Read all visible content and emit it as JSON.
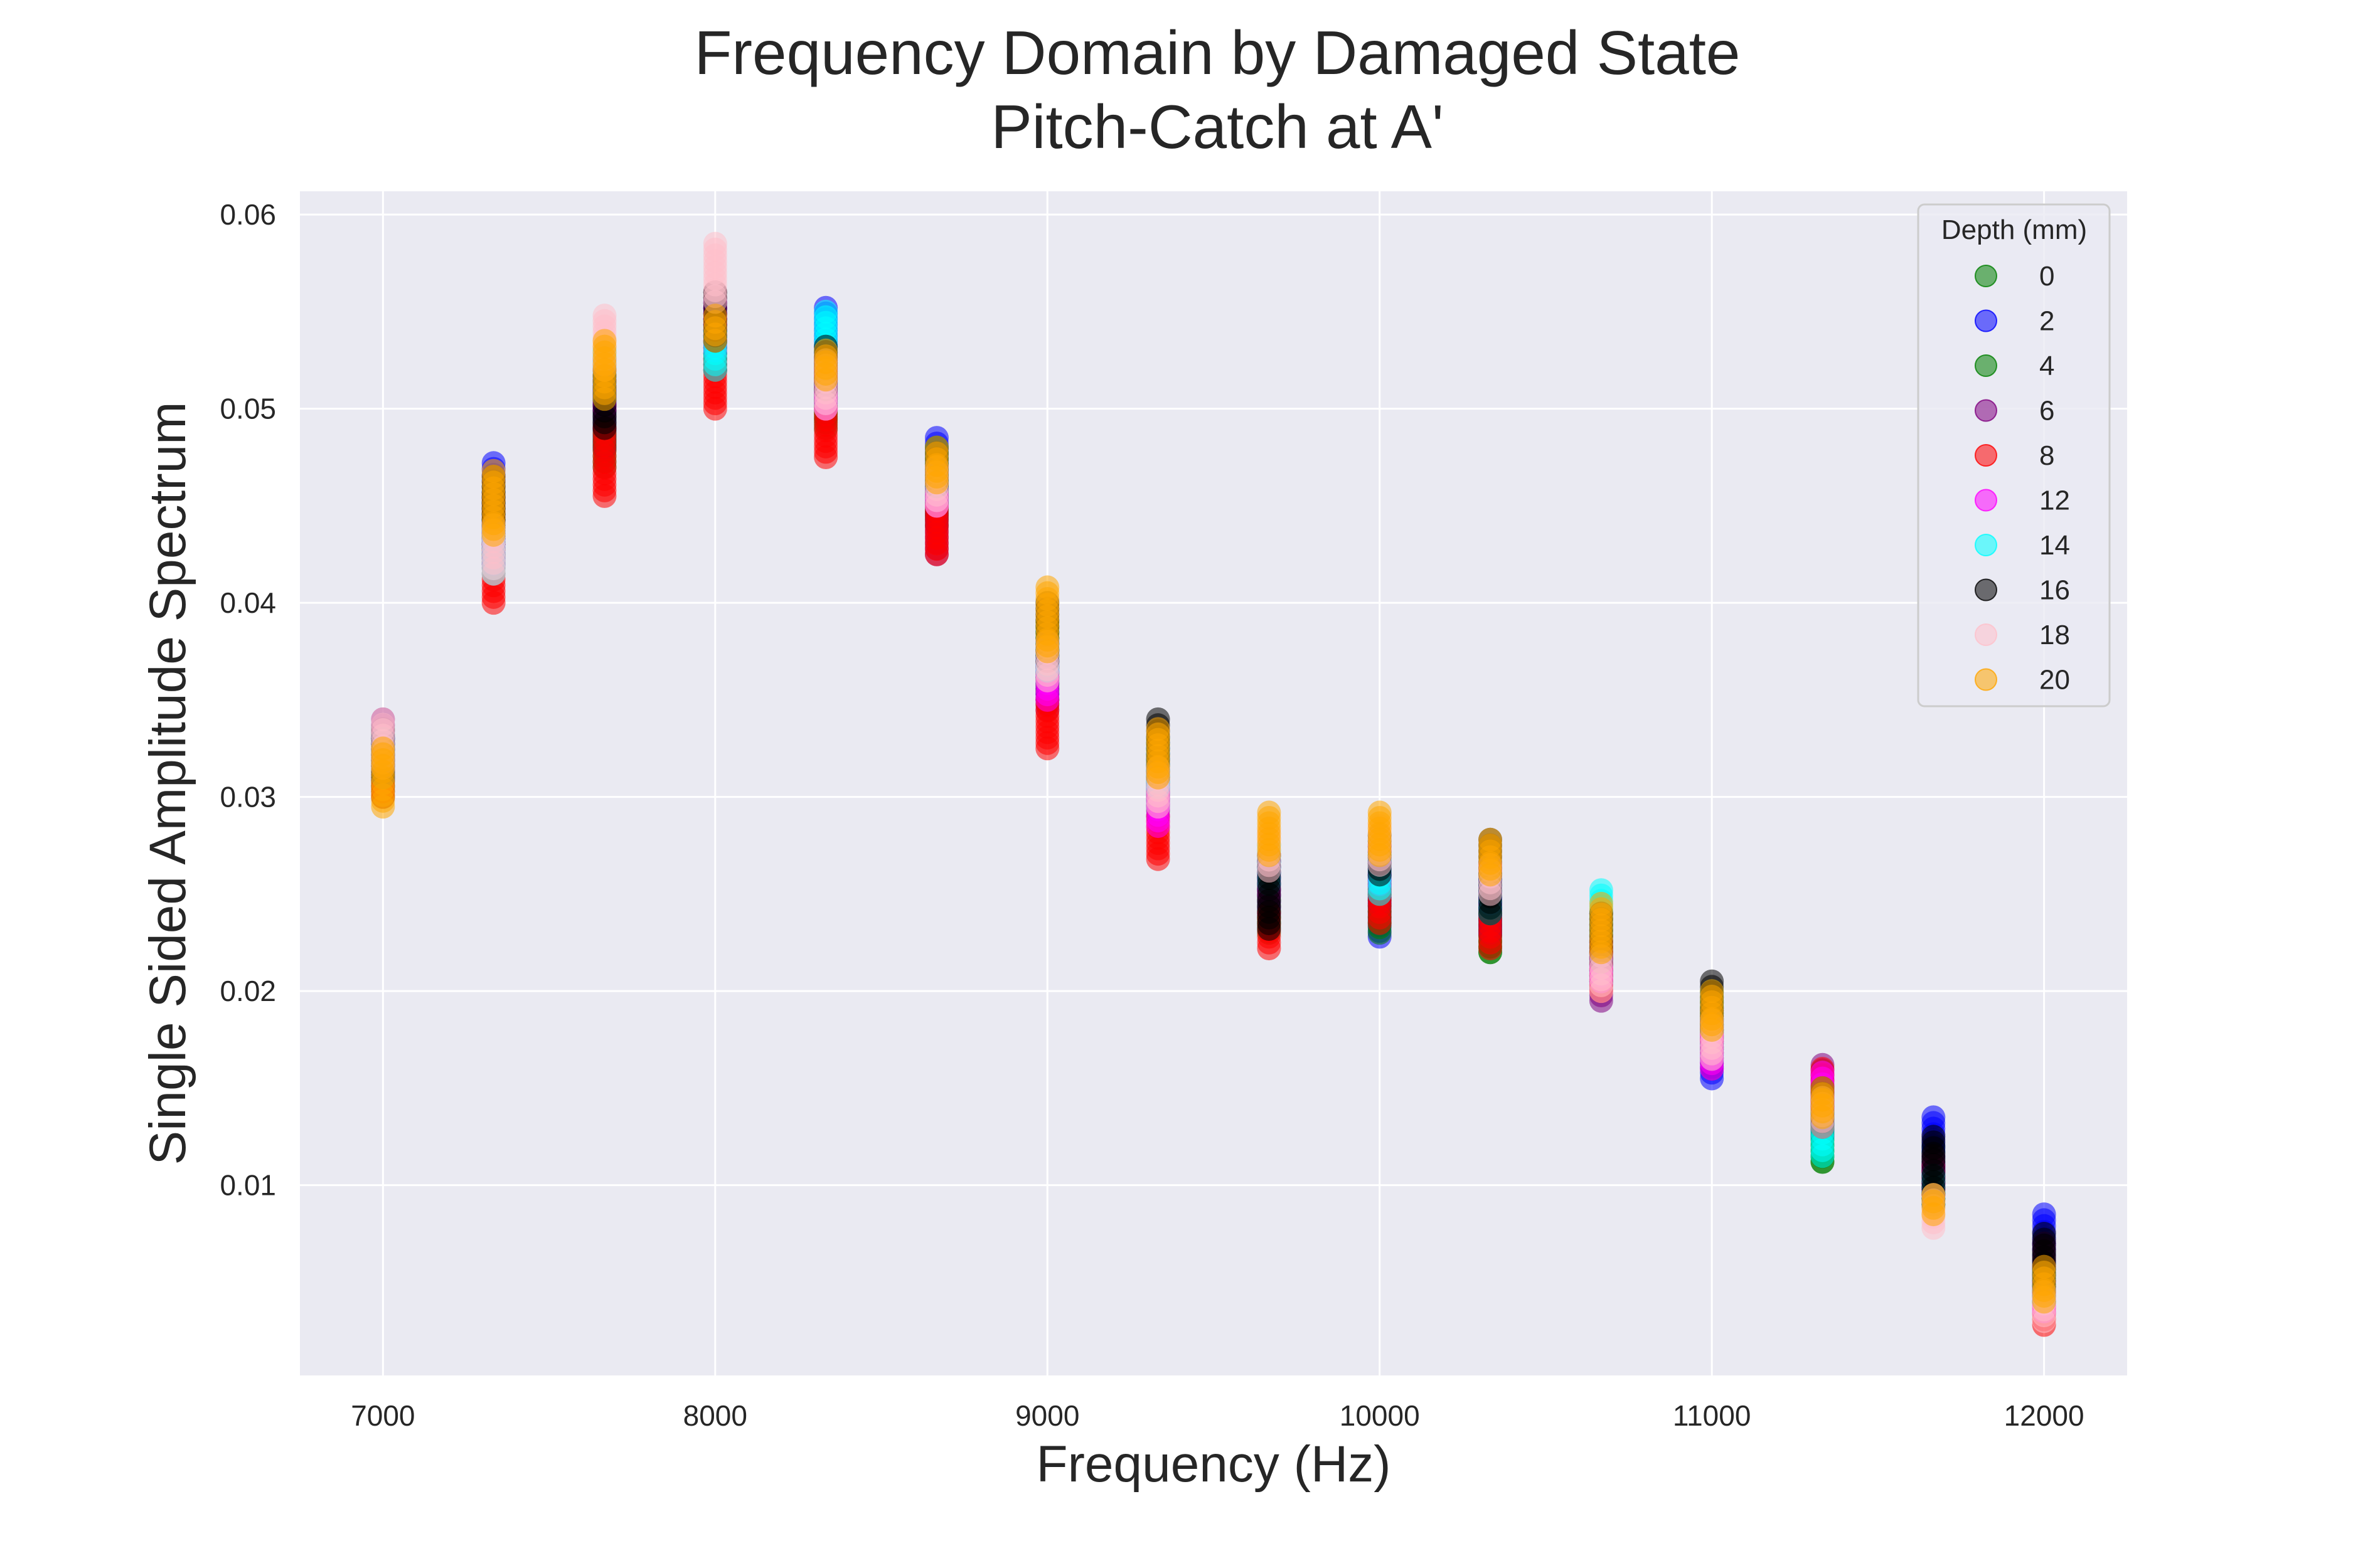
{
  "chart_data": {
    "type": "scatter",
    "title": [
      "Frequency Domain by Damaged State",
      "Pitch-Catch at A'"
    ],
    "xlabel": "Frequency (Hz)",
    "ylabel": "Single Sided Amplitude Spectrum",
    "xlim": [
      6750,
      12250
    ],
    "ylim": [
      0.0002,
      0.0612
    ],
    "xticks": [
      7000,
      8000,
      9000,
      10000,
      11000,
      12000
    ],
    "yticks": [
      0.01,
      0.02,
      0.03,
      0.04,
      0.05,
      0.06
    ],
    "ytick_labels": [
      "0.01",
      "0.02",
      "0.03",
      "0.04",
      "0.05",
      "0.06"
    ],
    "grid": true,
    "legend": {
      "title": "Depth (mm)",
      "placement": "top-right"
    },
    "x": [
      7000,
      7333,
      7667,
      8000,
      8333,
      8667,
      9000,
      9333,
      9667,
      10000,
      10333,
      10667,
      11000,
      11333,
      11667,
      12000
    ],
    "series": [
      {
        "name": "0",
        "color": "#008000",
        "ranges": [
          [
            0.03,
            0.0335
          ],
          [
            0.042,
            0.046
          ],
          [
            0.047,
            0.051
          ],
          [
            0.052,
            0.056
          ],
          [
            0.049,
            0.0525
          ],
          [
            0.0445,
            0.048
          ],
          [
            0.035,
            0.039
          ],
          [
            0.029,
            0.033
          ],
          [
            0.023,
            0.027
          ],
          [
            0.0235,
            0.027
          ],
          [
            0.022,
            0.0255
          ],
          [
            0.0205,
            0.024
          ],
          [
            0.0165,
            0.0195
          ],
          [
            0.0112,
            0.014
          ],
          [
            0.009,
            0.012
          ],
          [
            0.004,
            0.007
          ]
        ]
      },
      {
        "name": "2",
        "color": "#0000ff",
        "ranges": [
          [
            0.031,
            0.033
          ],
          [
            0.043,
            0.0472
          ],
          [
            0.048,
            0.0515
          ],
          [
            0.052,
            0.0555
          ],
          [
            0.05,
            0.0552
          ],
          [
            0.045,
            0.0485
          ],
          [
            0.035,
            0.038
          ],
          [
            0.0295,
            0.0325
          ],
          [
            0.024,
            0.027
          ],
          [
            0.0228,
            0.026
          ],
          [
            0.023,
            0.026
          ],
          [
            0.021,
            0.024
          ],
          [
            0.0155,
            0.0185
          ],
          [
            0.0125,
            0.0145
          ],
          [
            0.01,
            0.0135
          ],
          [
            0.004,
            0.0085
          ]
        ]
      },
      {
        "name": "4",
        "color": "#008000",
        "ranges": [
          [
            0.0305,
            0.0325
          ],
          [
            0.0425,
            0.0455
          ],
          [
            0.048,
            0.05
          ],
          [
            0.052,
            0.0545
          ],
          [
            0.0495,
            0.0515
          ],
          [
            0.044,
            0.047
          ],
          [
            0.0355,
            0.0375
          ],
          [
            0.03,
            0.032
          ],
          [
            0.0235,
            0.0255
          ],
          [
            0.023,
            0.025
          ],
          [
            0.022,
            0.024
          ],
          [
            0.0205,
            0.0225
          ],
          [
            0.017,
            0.019
          ],
          [
            0.0112,
            0.013
          ],
          [
            0.0095,
            0.0115
          ],
          [
            0.0045,
            0.0065
          ]
        ]
      },
      {
        "name": "6",
        "color": "#800080",
        "ranges": [
          [
            0.031,
            0.034
          ],
          [
            0.043,
            0.0455
          ],
          [
            0.049,
            0.051
          ],
          [
            0.0535,
            0.056
          ],
          [
            0.0505,
            0.0525
          ],
          [
            0.0425,
            0.0455
          ],
          [
            0.0345,
            0.0375
          ],
          [
            0.0295,
            0.032
          ],
          [
            0.024,
            0.026
          ],
          [
            0.0245,
            0.0265
          ],
          [
            0.023,
            0.026
          ],
          [
            0.0195,
            0.022
          ],
          [
            0.016,
            0.0185
          ],
          [
            0.014,
            0.0162
          ],
          [
            0.0095,
            0.0115
          ],
          [
            0.005,
            0.007
          ]
        ]
      },
      {
        "name": "8",
        "color": "#ff0000",
        "ranges": [
          [
            0.03,
            0.032
          ],
          [
            0.04,
            0.043
          ],
          [
            0.0455,
            0.049
          ],
          [
            0.05,
            0.0525
          ],
          [
            0.0475,
            0.05
          ],
          [
            0.0425,
            0.045
          ],
          [
            0.0325,
            0.035
          ],
          [
            0.0268,
            0.029
          ],
          [
            0.0222,
            0.024
          ],
          [
            0.0235,
            0.0255
          ],
          [
            0.0222,
            0.024
          ],
          [
            0.02,
            0.022
          ],
          [
            0.0175,
            0.019
          ],
          [
            0.014,
            0.016
          ],
          [
            0.0095,
            0.011
          ],
          [
            0.0028,
            0.0045
          ]
        ]
      },
      {
        "name": "12",
        "color": "#ff00ff",
        "ranges": [
          [
            0.031,
            0.033
          ],
          [
            0.042,
            0.044
          ],
          [
            0.05,
            0.0525
          ],
          [
            0.053,
            0.0555
          ],
          [
            0.05,
            0.052
          ],
          [
            0.045,
            0.047
          ],
          [
            0.035,
            0.037
          ],
          [
            0.0285,
            0.0305
          ],
          [
            0.025,
            0.027
          ],
          [
            0.0255,
            0.0275
          ],
          [
            0.0245,
            0.0265
          ],
          [
            0.0205,
            0.0225
          ],
          [
            0.016,
            0.018
          ],
          [
            0.014,
            0.0158
          ],
          [
            0.0095,
            0.011
          ],
          [
            0.0035,
            0.005
          ]
        ]
      },
      {
        "name": "14",
        "color": "#00ffff",
        "ranges": [
          [
            0.031,
            0.033
          ],
          [
            0.0415,
            0.044
          ],
          [
            0.0505,
            0.053
          ],
          [
            0.052,
            0.054
          ],
          [
            0.053,
            0.055
          ],
          [
            0.046,
            0.048
          ],
          [
            0.0365,
            0.0385
          ],
          [
            0.0305,
            0.0325
          ],
          [
            0.0255,
            0.0275
          ],
          [
            0.025,
            0.027
          ],
          [
            0.024,
            0.026
          ],
          [
            0.023,
            0.0252
          ],
          [
            0.018,
            0.02
          ],
          [
            0.0115,
            0.013
          ],
          [
            0.009,
            0.0105
          ],
          [
            0.004,
            0.0055
          ]
        ]
      },
      {
        "name": "16",
        "color": "#000000",
        "ranges": [
          [
            0.031,
            0.033
          ],
          [
            0.044,
            0.0465
          ],
          [
            0.049,
            0.052
          ],
          [
            0.0535,
            0.056
          ],
          [
            0.051,
            0.0532
          ],
          [
            0.046,
            0.048
          ],
          [
            0.037,
            0.04
          ],
          [
            0.031,
            0.034
          ],
          [
            0.0232,
            0.027
          ],
          [
            0.026,
            0.028
          ],
          [
            0.024,
            0.0278
          ],
          [
            0.0215,
            0.024
          ],
          [
            0.018,
            0.0205
          ],
          [
            0.013,
            0.015
          ],
          [
            0.009,
            0.0125
          ],
          [
            0.0045,
            0.0075
          ]
        ]
      },
      {
        "name": "18",
        "color": "#ffc0cb",
        "ranges": [
          [
            0.0315,
            0.034
          ],
          [
            0.0415,
            0.044
          ],
          [
            0.052,
            0.0548
          ],
          [
            0.0555,
            0.0585
          ],
          [
            0.05,
            0.0525
          ],
          [
            0.045,
            0.047
          ],
          [
            0.036,
            0.038
          ],
          [
            0.0295,
            0.0315
          ],
          [
            0.0262,
            0.0282
          ],
          [
            0.0265,
            0.0285
          ],
          [
            0.025,
            0.0265
          ],
          [
            0.02,
            0.0218
          ],
          [
            0.0165,
            0.0185
          ],
          [
            0.013,
            0.0145
          ],
          [
            0.0078,
            0.0095
          ],
          [
            0.003,
            0.0045
          ]
        ]
      },
      {
        "name": "20",
        "color": "#ffa500",
        "ranges": [
          [
            0.0295,
            0.0325
          ],
          [
            0.0435,
            0.0468
          ],
          [
            0.0505,
            0.0535
          ],
          [
            0.0535,
            0.0548
          ],
          [
            0.0515,
            0.053
          ],
          [
            0.0462,
            0.048
          ],
          [
            0.0375,
            0.0408
          ],
          [
            0.031,
            0.0335
          ],
          [
            0.027,
            0.0292
          ],
          [
            0.027,
            0.0292
          ],
          [
            0.026,
            0.0278
          ],
          [
            0.022,
            0.0245
          ],
          [
            0.018,
            0.02
          ],
          [
            0.0135,
            0.015
          ],
          [
            0.0085,
            0.0095
          ],
          [
            0.004,
            0.0058
          ]
        ]
      }
    ]
  }
}
